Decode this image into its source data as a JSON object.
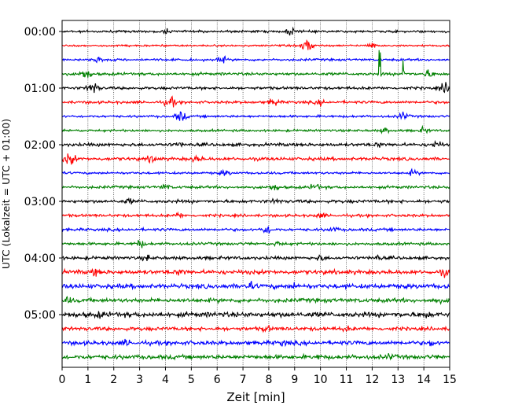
{
  "chart_data": {
    "type": "line",
    "title": "",
    "xlabel": "Zeit  [min]",
    "ylabel": "UTC (Lokalzeit = UTC + 01:00)",
    "xlim": [
      0,
      15
    ],
    "x_ticks": [
      "0",
      "1",
      "2",
      "3",
      "4",
      "5",
      "6",
      "7",
      "8",
      "9",
      "10",
      "11",
      "12",
      "13",
      "14",
      "15"
    ],
    "y_ticks": [
      "00:00",
      "01:00",
      "02:00",
      "03:00",
      "04:00",
      "05:00"
    ],
    "grid": "vertical dotted",
    "line_colors": [
      "#000000",
      "#ff0000",
      "#0000ff",
      "#008000"
    ],
    "traces": [
      {
        "start": "00:00",
        "color": "#000000",
        "amplitude": 0.1,
        "events": [
          {
            "t": 4.0,
            "amp": 0.25
          },
          {
            "t": 8.9,
            "amp": 0.4
          }
        ]
      },
      {
        "start": "00:15",
        "color": "#ff0000",
        "amplitude": 0.08,
        "events": [
          {
            "t": 9.5,
            "amp": 0.6
          },
          {
            "t": 12.0,
            "amp": 0.3
          }
        ]
      },
      {
        "start": "00:30",
        "color": "#0000ff",
        "amplitude": 0.1,
        "events": [
          {
            "t": 1.4,
            "amp": 0.35
          },
          {
            "t": 6.2,
            "amp": 0.3
          }
        ]
      },
      {
        "start": "00:45",
        "color": "#008000",
        "amplitude": 0.12,
        "events": [
          {
            "t": 0.9,
            "amp": 0.5
          },
          {
            "t": 12.3,
            "amp": 5.0
          },
          {
            "t": 13.2,
            "amp": 4.0
          },
          {
            "t": 14.2,
            "amp": 0.4
          }
        ]
      },
      {
        "start": "01:00",
        "color": "#000000",
        "amplitude": 0.12,
        "events": [
          {
            "t": 1.2,
            "amp": 0.6
          },
          {
            "t": 14.8,
            "amp": 0.5
          }
        ]
      },
      {
        "start": "01:15",
        "color": "#ff0000",
        "amplitude": 0.12,
        "events": [
          {
            "t": 4.2,
            "amp": 0.5
          },
          {
            "t": 8.2,
            "amp": 0.4
          },
          {
            "t": 10.0,
            "amp": 0.3
          }
        ]
      },
      {
        "start": "01:30",
        "color": "#0000ff",
        "amplitude": 0.1,
        "events": [
          {
            "t": 4.6,
            "amp": 0.5
          },
          {
            "t": 13.2,
            "amp": 0.4
          }
        ]
      },
      {
        "start": "01:45",
        "color": "#008000",
        "amplitude": 0.1,
        "events": [
          {
            "t": 12.5,
            "amp": 0.3
          },
          {
            "t": 14.0,
            "amp": 0.3
          }
        ]
      },
      {
        "start": "02:00",
        "color": "#000000",
        "amplitude": 0.14,
        "events": [
          {
            "t": 4.5,
            "amp": 0.3
          },
          {
            "t": 14.5,
            "amp": 0.4
          },
          {
            "t": 12.3,
            "amp": 0.3
          }
        ]
      },
      {
        "start": "02:15",
        "color": "#ff0000",
        "amplitude": 0.14,
        "events": [
          {
            "t": 0.3,
            "amp": 0.6
          },
          {
            "t": 3.5,
            "amp": 0.4
          },
          {
            "t": 5.2,
            "amp": 0.4
          }
        ]
      },
      {
        "start": "02:30",
        "color": "#0000ff",
        "amplitude": 0.1,
        "events": [
          {
            "t": 6.3,
            "amp": 0.3
          },
          {
            "t": 13.6,
            "amp": 0.3
          }
        ]
      },
      {
        "start": "02:45",
        "color": "#008000",
        "amplitude": 0.12,
        "events": [
          {
            "t": 8.2,
            "amp": 0.35
          },
          {
            "t": 9.8,
            "amp": 0.35
          },
          {
            "t": 4.0,
            "amp": 0.3
          }
        ]
      },
      {
        "start": "03:00",
        "color": "#000000",
        "amplitude": 0.14,
        "events": [
          {
            "t": 2.6,
            "amp": 0.3
          },
          {
            "t": 8.3,
            "amp": 0.3
          }
        ]
      },
      {
        "start": "03:15",
        "color": "#ff0000",
        "amplitude": 0.12,
        "events": [
          {
            "t": 10.0,
            "amp": 0.3
          },
          {
            "t": 4.5,
            "amp": 0.3
          }
        ]
      },
      {
        "start": "03:30",
        "color": "#0000ff",
        "amplitude": 0.12,
        "events": [
          {
            "t": 7.9,
            "amp": 0.45
          },
          {
            "t": 10.5,
            "amp": 0.3
          }
        ]
      },
      {
        "start": "03:45",
        "color": "#008000",
        "amplitude": 0.12,
        "events": [
          {
            "t": 3.0,
            "amp": 0.4
          },
          {
            "t": 8.4,
            "amp": 0.3
          }
        ]
      },
      {
        "start": "04:00",
        "color": "#000000",
        "amplitude": 0.14,
        "events": [
          {
            "t": 3.3,
            "amp": 0.35
          },
          {
            "t": 10.0,
            "amp": 0.35
          },
          {
            "t": 12.2,
            "amp": 0.3
          }
        ]
      },
      {
        "start": "04:15",
        "color": "#ff0000",
        "amplitude": 0.18,
        "events": [
          {
            "t": 1.3,
            "amp": 0.4
          },
          {
            "t": 4.6,
            "amp": 0.4
          },
          {
            "t": 14.8,
            "amp": 0.4
          }
        ]
      },
      {
        "start": "04:30",
        "color": "#0000ff",
        "amplitude": 0.2,
        "events": [
          {
            "t": 7.2,
            "amp": 0.5
          },
          {
            "t": 9.0,
            "amp": 0.35
          }
        ]
      },
      {
        "start": "04:45",
        "color": "#008000",
        "amplitude": 0.18,
        "events": [
          {
            "t": 0.2,
            "amp": 0.4
          },
          {
            "t": 14.5,
            "amp": 0.35
          }
        ]
      },
      {
        "start": "05:00",
        "color": "#000000",
        "amplitude": 0.22,
        "events": [
          {
            "t": 1.5,
            "amp": 0.4
          },
          {
            "t": 14.1,
            "amp": 0.4
          }
        ]
      },
      {
        "start": "05:15",
        "color": "#ff0000",
        "amplitude": 0.16,
        "events": [
          {
            "t": 7.9,
            "amp": 0.35
          },
          {
            "t": 11.0,
            "amp": 0.3
          }
        ]
      },
      {
        "start": "05:30",
        "color": "#0000ff",
        "amplitude": 0.18,
        "events": [
          {
            "t": 2.5,
            "amp": 0.35
          },
          {
            "t": 8.6,
            "amp": 0.35
          },
          {
            "t": 14.3,
            "amp": 0.35
          }
        ]
      },
      {
        "start": "05:45",
        "color": "#008000",
        "amplitude": 0.18,
        "events": [
          {
            "t": 10.0,
            "amp": 0.3
          },
          {
            "t": 12.7,
            "amp": 0.35
          }
        ]
      }
    ]
  }
}
